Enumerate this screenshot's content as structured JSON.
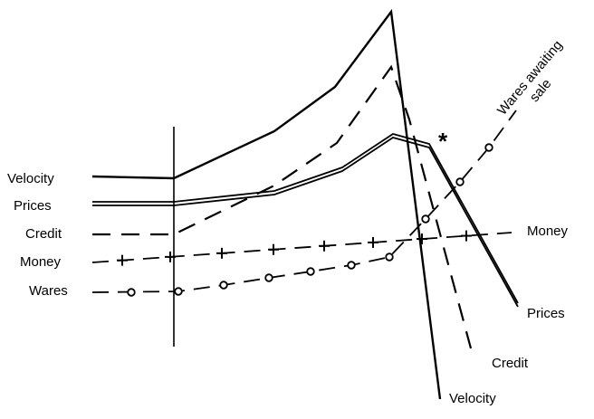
{
  "chart_data": {
    "type": "line",
    "title": "",
    "xlabel": "",
    "ylabel": "",
    "grid": false,
    "legend": "none",
    "x": [
      0,
      1,
      2,
      3,
      4,
      5,
      6,
      7,
      8,
      9
    ],
    "series": [
      {
        "name": "Velocity",
        "style": "solid",
        "marker": "none",
        "values": [
          [
            0,
            60
          ],
          [
            1,
            60
          ],
          [
            2,
            71
          ],
          [
            3,
            80
          ],
          [
            4,
            91
          ],
          [
            5,
            110
          ],
          [
            6,
            -113
          ]
        ]
      },
      {
        "name": "Prices",
        "style": "double",
        "marker": "none",
        "values": [
          [
            0,
            25
          ],
          [
            1,
            25
          ],
          [
            2,
            29
          ],
          [
            3,
            33
          ],
          [
            4,
            42
          ],
          [
            5,
            55
          ],
          [
            6,
            51
          ],
          [
            7,
            -41
          ]
        ]
      },
      {
        "name": "Credit",
        "style": "dashed",
        "marker": "none",
        "values": [
          [
            0,
            3
          ],
          [
            1,
            3
          ],
          [
            2,
            24
          ],
          [
            3,
            42
          ],
          [
            4,
            61
          ],
          [
            5,
            85
          ],
          [
            6,
            51
          ],
          [
            7,
            -76
          ]
        ]
      },
      {
        "name": "Money",
        "style": "dash-cross",
        "marker": "cross",
        "values": [
          [
            0,
            -8
          ],
          [
            1,
            -8
          ],
          [
            2,
            -6
          ],
          [
            3,
            -4
          ],
          [
            4,
            -2
          ],
          [
            5,
            0
          ],
          [
            6,
            2
          ],
          [
            7,
            4
          ],
          [
            8,
            6
          ]
        ]
      },
      {
        "name": "Wares",
        "style": "dash-circle",
        "marker": "circle",
        "values": [
          [
            0,
            -20
          ],
          [
            1,
            -20
          ],
          [
            2,
            -17
          ],
          [
            3,
            -14
          ],
          [
            4,
            -11
          ],
          [
            5,
            -7
          ],
          [
            6,
            12
          ],
          [
            7,
            38
          ],
          [
            8,
            64
          ],
          [
            9,
            85
          ]
        ]
      }
    ],
    "start_marker_x": 1,
    "star_annotation": {
      "text": "*",
      "x": 6.5,
      "y": 62
    },
    "left_labels": [
      "Velocity",
      "Prices",
      "Credit",
      "Money",
      "Wares"
    ],
    "right_labels": [
      "Money",
      "Prices",
      "Credit",
      "Velocity"
    ],
    "rotated_label": "Wares awaiting\nsale"
  }
}
